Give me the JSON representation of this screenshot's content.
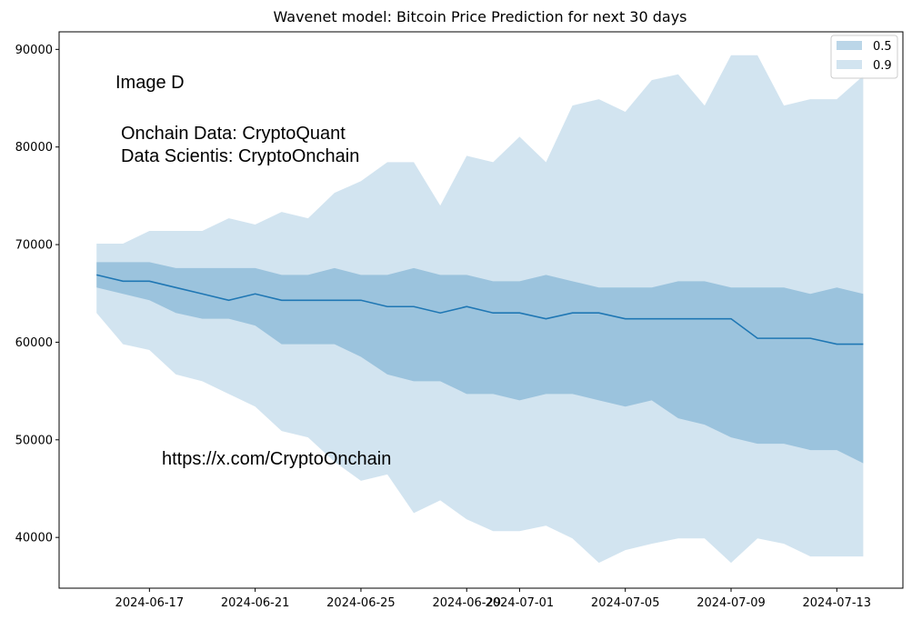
{
  "chart_data": {
    "type": "area",
    "title": "Wavenet model: Bitcoin Price Prediction for next 30 days",
    "xlabel": "",
    "ylabel": "",
    "x": [
      "2024-06-15",
      "2024-06-16",
      "2024-06-17",
      "2024-06-18",
      "2024-06-19",
      "2024-06-20",
      "2024-06-21",
      "2024-06-22",
      "2024-06-23",
      "2024-06-24",
      "2024-06-25",
      "2024-06-26",
      "2024-06-27",
      "2024-06-28",
      "2024-06-29",
      "2024-06-30",
      "2024-07-01",
      "2024-07-02",
      "2024-07-03",
      "2024-07-04",
      "2024-07-05",
      "2024-07-06",
      "2024-07-07",
      "2024-07-08",
      "2024-07-09",
      "2024-07-10",
      "2024-07-11",
      "2024-07-12",
      "2024-07-13",
      "2024-07-14"
    ],
    "xlim": [
      "2024-06-13T14:00",
      "2024-07-15T12:00"
    ],
    "ylim": [
      34800,
      91800
    ],
    "xticks": [
      "2024-06-17",
      "2024-06-21",
      "2024-06-25",
      "2024-06-29",
      "2024-07-01",
      "2024-07-05",
      "2024-07-09",
      "2024-07-13"
    ],
    "yticks": [
      40000,
      50000,
      60000,
      70000,
      80000,
      90000
    ],
    "grid": false,
    "legend": {
      "placement": "top-right",
      "entries": [
        "0.5",
        "0.9"
      ]
    },
    "series": [
      {
        "name": "median",
        "kind": "line",
        "color": "#1f77b4",
        "values": [
          66900,
          66250,
          66250,
          65600,
          64950,
          64300,
          64950,
          64300,
          64300,
          64300,
          64300,
          63650,
          63650,
          63000,
          63650,
          63000,
          63000,
          62400,
          63000,
          63000,
          62400,
          62400,
          62400,
          62400,
          62400,
          60400,
          60400,
          60400,
          59800,
          59800
        ]
      },
      {
        "name": "0.9",
        "kind": "band",
        "color": "#1f77b4",
        "opacity": 0.2,
        "upper": [
          70100,
          70100,
          71400,
          71400,
          71400,
          72700,
          72050,
          73350,
          72700,
          75300,
          76500,
          78450,
          78450,
          74000,
          79100,
          78450,
          81050,
          78450,
          84250,
          84900,
          83600,
          86850,
          87450,
          84250,
          89400,
          89400,
          84250,
          84900,
          84900,
          87300
        ],
        "lower": [
          63000,
          59800,
          59200,
          56700,
          56000,
          54700,
          53400,
          50900,
          50250,
          47750,
          45800,
          46450,
          42500,
          43800,
          41850,
          40650,
          40650,
          41200,
          39900,
          37400,
          38700,
          39350,
          39900,
          39900,
          37400,
          39900,
          39350,
          38050,
          38050,
          38050
        ]
      },
      {
        "name": "0.5",
        "kind": "band",
        "color": "#1f77b4",
        "opacity": 0.3,
        "upper": [
          68200,
          68200,
          68200,
          67600,
          67600,
          67600,
          67600,
          66900,
          66900,
          67600,
          66900,
          66900,
          67600,
          66900,
          66900,
          66250,
          66250,
          66900,
          66250,
          65600,
          65600,
          65600,
          66250,
          66250,
          65600,
          65600,
          65600,
          64950,
          65600,
          64950
        ],
        "lower": [
          65600,
          64950,
          64300,
          63000,
          62400,
          62400,
          61700,
          59800,
          59800,
          59800,
          58500,
          56700,
          56000,
          56000,
          54700,
          54700,
          54050,
          54700,
          54700,
          54050,
          53400,
          54050,
          52200,
          51550,
          50250,
          49600,
          49600,
          48950,
          48950,
          47600
        ]
      }
    ],
    "annotations": [
      {
        "id": "image-label",
        "text": "Image D"
      },
      {
        "id": "source-line-1",
        "text": "Onchain Data: CryptoQuant"
      },
      {
        "id": "source-line-2",
        "text": "Data Scientis: CryptoOnchain"
      },
      {
        "id": "url",
        "text": "https://x.com/CryptoOnchain"
      }
    ]
  }
}
